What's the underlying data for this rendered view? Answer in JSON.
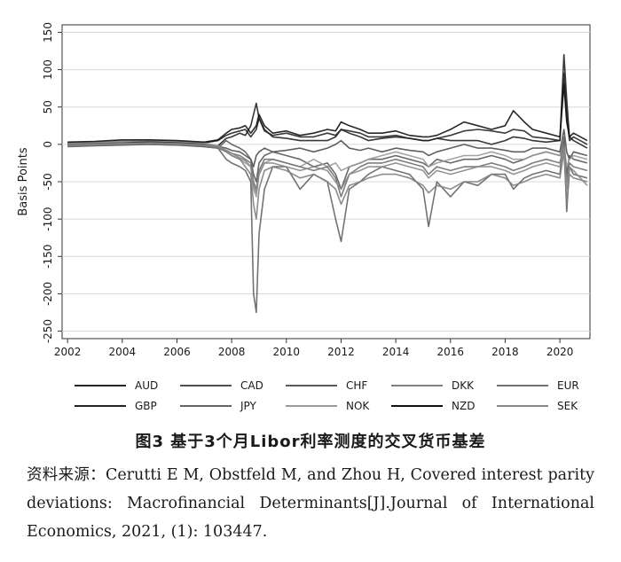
{
  "chart_data": {
    "type": "line",
    "title": "",
    "xlabel": "",
    "ylabel": "Basis Points",
    "xlim": [
      2001.8,
      2021.1
    ],
    "ylim": [
      -260,
      160
    ],
    "x_ticks": [
      "2002",
      "2004",
      "2006",
      "2008",
      "2010",
      "2012",
      "2014",
      "2016",
      "2018",
      "2020"
    ],
    "y_ticks": [
      "150",
      "100",
      "50",
      "0",
      "-50",
      "-100",
      "-150",
      "-200",
      "-250"
    ],
    "grid": "horizontal",
    "legend_position": "bottom",
    "x": [
      2002.0,
      2003.0,
      2004.0,
      2005.0,
      2006.0,
      2007.0,
      2007.5,
      2007.8,
      2008.0,
      2008.3,
      2008.5,
      2008.7,
      2008.8,
      2008.9,
      2009.0,
      2009.2,
      2009.5,
      2010.0,
      2010.5,
      2011.0,
      2011.5,
      2011.8,
      2012.0,
      2012.3,
      2012.7,
      2013.0,
      2013.5,
      2014.0,
      2014.5,
      2015.0,
      2015.2,
      2015.5,
      2016.0,
      2016.5,
      2017.0,
      2017.5,
      2018.0,
      2018.3,
      2018.7,
      2019.0,
      2019.5,
      2020.0,
      2020.15,
      2020.25,
      2020.35,
      2020.5,
      2021.0
    ],
    "series": [
      {
        "name": "AUD",
        "color": "#252525",
        "values": [
          2,
          3,
          4,
          4,
          3,
          2,
          5,
          12,
          15,
          18,
          20,
          10,
          15,
          20,
          35,
          18,
          12,
          15,
          10,
          10,
          15,
          12,
          20,
          18,
          15,
          10,
          10,
          12,
          8,
          5,
          5,
          8,
          12,
          18,
          20,
          18,
          15,
          20,
          18,
          10,
          8,
          5,
          95,
          40,
          5,
          10,
          0
        ]
      },
      {
        "name": "GBP",
        "color": "#222222",
        "values": [
          0,
          1,
          2,
          3,
          2,
          0,
          -2,
          8,
          10,
          15,
          12,
          25,
          40,
          55,
          35,
          20,
          10,
          8,
          5,
          5,
          5,
          10,
          20,
          15,
          10,
          5,
          8,
          10,
          8,
          5,
          5,
          8,
          5,
          5,
          5,
          0,
          5,
          10,
          8,
          5,
          3,
          5,
          120,
          60,
          10,
          5,
          -5
        ]
      },
      {
        "name": "CAD",
        "color": "#4f4f4f",
        "values": [
          -2,
          0,
          1,
          2,
          2,
          0,
          -3,
          -5,
          -8,
          -10,
          -15,
          -20,
          -30,
          -15,
          -10,
          -5,
          -10,
          -8,
          -5,
          -10,
          -5,
          0,
          5,
          -5,
          -8,
          -5,
          -10,
          -5,
          -8,
          -10,
          -15,
          -10,
          -5,
          0,
          -5,
          -5,
          -8,
          -10,
          -10,
          -5,
          -5,
          -10,
          20,
          -10,
          -20,
          -10,
          -15
        ]
      },
      {
        "name": "JPY",
        "color": "#646464",
        "values": [
          0,
          1,
          2,
          1,
          0,
          -3,
          -5,
          -20,
          -25,
          -30,
          -35,
          -50,
          -200,
          -225,
          -120,
          -60,
          -30,
          -30,
          -60,
          -40,
          -50,
          -100,
          -130,
          -60,
          -50,
          -40,
          -30,
          -35,
          -40,
          -60,
          -110,
          -50,
          -70,
          -50,
          -55,
          -40,
          -40,
          -60,
          -45,
          -40,
          -35,
          -40,
          10,
          -90,
          -30,
          -40,
          -45
        ]
      },
      {
        "name": "CHF",
        "color": "#5a5a5a",
        "values": [
          -3,
          -2,
          -1,
          0,
          -1,
          -3,
          -5,
          5,
          0,
          -5,
          -10,
          -20,
          -40,
          -50,
          -25,
          -15,
          -10,
          -15,
          -20,
          -30,
          -25,
          -40,
          -60,
          -30,
          -25,
          -20,
          -20,
          -15,
          -20,
          -25,
          -30,
          -20,
          -25,
          -20,
          -20,
          -15,
          -20,
          -25,
          -20,
          -15,
          -10,
          -15,
          5,
          -40,
          -15,
          -20,
          -25
        ]
      },
      {
        "name": "NOK",
        "color": "#9a9a9a",
        "values": [
          2,
          3,
          4,
          5,
          4,
          2,
          -2,
          -10,
          -15,
          -20,
          -25,
          -30,
          -60,
          -70,
          -40,
          -25,
          -20,
          -25,
          -30,
          -20,
          -30,
          -25,
          -35,
          -30,
          -25,
          -20,
          -15,
          -10,
          -15,
          -20,
          -30,
          -25,
          -20,
          -15,
          -15,
          -10,
          -15,
          -20,
          -20,
          -15,
          -10,
          -15,
          0,
          -30,
          -20,
          -15,
          -20
        ]
      },
      {
        "name": "DKK",
        "color": "#808080",
        "values": [
          -1,
          0,
          1,
          1,
          0,
          -2,
          -5,
          -10,
          -15,
          -20,
          -30,
          -40,
          -80,
          -100,
          -60,
          -35,
          -30,
          -35,
          -45,
          -40,
          -50,
          -60,
          -80,
          -55,
          -50,
          -45,
          -40,
          -40,
          -45,
          -55,
          -65,
          -55,
          -60,
          -50,
          -50,
          -40,
          -45,
          -55,
          -50,
          -45,
          -40,
          -45,
          -10,
          -80,
          -40,
          -45,
          -50
        ]
      },
      {
        "name": "NZD",
        "color": "#111111",
        "values": [
          3,
          4,
          6,
          6,
          5,
          3,
          6,
          15,
          20,
          22,
          25,
          15,
          20,
          25,
          40,
          25,
          15,
          18,
          12,
          15,
          20,
          18,
          30,
          25,
          20,
          15,
          15,
          18,
          12,
          10,
          10,
          12,
          20,
          30,
          25,
          20,
          25,
          45,
          30,
          20,
          15,
          10,
          80,
          30,
          10,
          15,
          5
        ]
      },
      {
        "name": "EUR",
        "color": "#707070",
        "values": [
          -2,
          -1,
          0,
          0,
          -1,
          -2,
          -4,
          -8,
          -12,
          -15,
          -20,
          -25,
          -50,
          -60,
          -35,
          -20,
          -20,
          -25,
          -30,
          -35,
          -30,
          -45,
          -70,
          -40,
          -30,
          -25,
          -25,
          -20,
          -25,
          -30,
          -40,
          -30,
          -35,
          -30,
          -30,
          -25,
          -30,
          -35,
          -30,
          -25,
          -20,
          -25,
          0,
          -50,
          -25,
          -30,
          -35
        ]
      },
      {
        "name": "SEK",
        "color": "#888888",
        "values": [
          -1,
          0,
          1,
          2,
          1,
          -1,
          -3,
          -8,
          -12,
          -18,
          -22,
          -30,
          -55,
          -65,
          -40,
          -25,
          -25,
          -30,
          -35,
          -30,
          -35,
          -50,
          -60,
          -40,
          -35,
          -30,
          -30,
          -25,
          -30,
          -35,
          -45,
          -35,
          -40,
          -35,
          -30,
          -30,
          -35,
          -40,
          -35,
          -30,
          -25,
          -30,
          -5,
          -60,
          -30,
          -35,
          -55
        ]
      }
    ],
    "legend": [
      [
        {
          "name": "AUD",
          "color": "#252525"
        },
        {
          "name": "CAD",
          "color": "#4f4f4f"
        },
        {
          "name": "CHF",
          "color": "#5a5a5a"
        },
        {
          "name": "DKK",
          "color": "#808080"
        },
        {
          "name": "EUR",
          "color": "#707070"
        }
      ],
      [
        {
          "name": "GBP",
          "color": "#222222"
        },
        {
          "name": "JPY",
          "color": "#646464"
        },
        {
          "name": "NOK",
          "color": "#9a9a9a"
        },
        {
          "name": "NZD",
          "color": "#111111"
        },
        {
          "name": "SEK",
          "color": "#888888"
        }
      ]
    ]
  },
  "caption": "图3   基于3个月Libor利率测度的交叉货币基差",
  "source": {
    "prefix": "资料来源：",
    "text": "Cerutti E M, Obstfeld M, and Zhou H, Covered interest parity deviations: Macrofinancial Determinants[J].Journal of International Economics, 2021, (1): 103447."
  }
}
